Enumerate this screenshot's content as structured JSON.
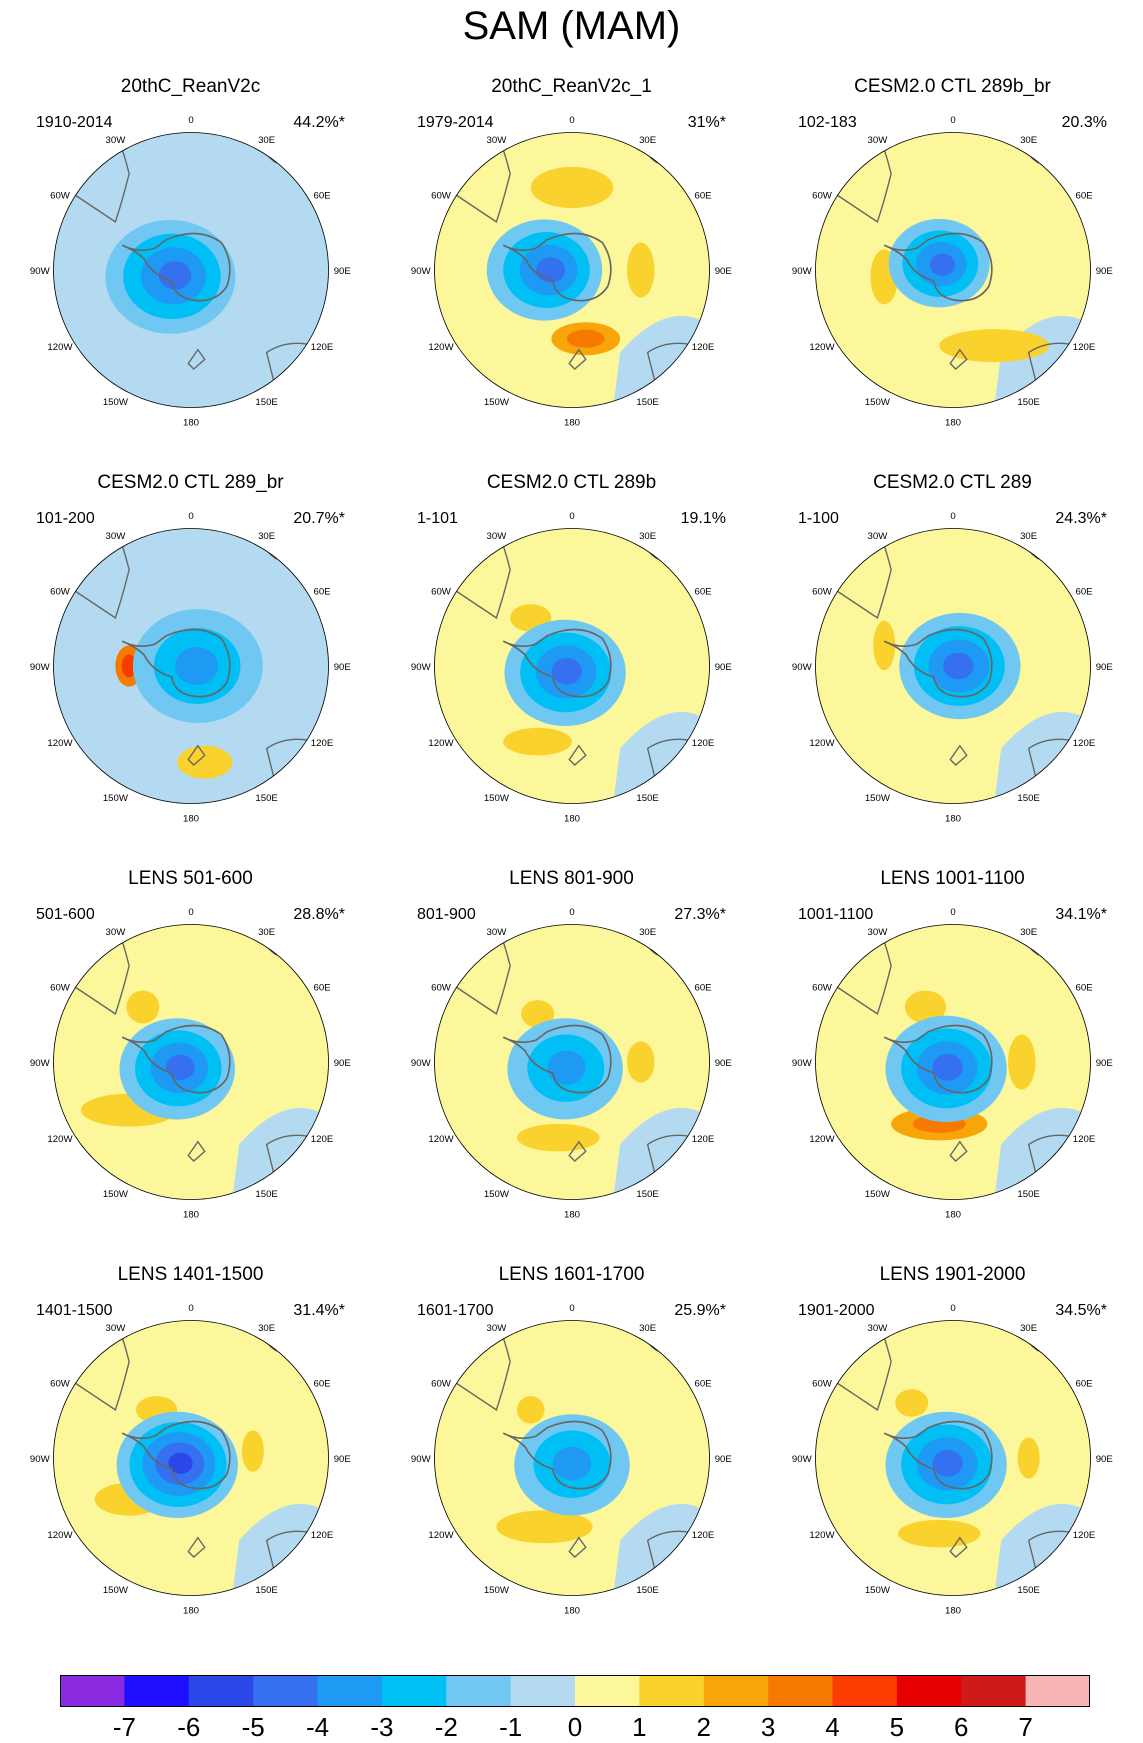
{
  "figure": {
    "title": "SAM (MAM)",
    "projection": "south-polar-stereographic",
    "lon_labels": [
      "0",
      "30E",
      "60E",
      "90E",
      "120E",
      "150E",
      "180",
      "150W",
      "120W",
      "90W",
      "60W",
      "30W"
    ]
  },
  "panels": [
    {
      "title": "20thC_ReanV2c",
      "period": "1910-2014",
      "pct": "44.2%*",
      "pattern": {
        "core": -4,
        "core_offset": [
          -0.15,
          0.05
        ],
        "core_r": 0.45,
        "ring": "neg",
        "extra": []
      }
    },
    {
      "title": "20thC_ReanV2c_1",
      "period": "1979-2014",
      "pct": "31%*",
      "pattern": {
        "core": -4,
        "core_offset": [
          -0.2,
          0.0
        ],
        "core_r": 0.4,
        "ring": "pos",
        "extra": [
          [
            "pos2",
            0.1,
            0.5,
            0.25,
            0.12
          ],
          [
            "pos1",
            0.5,
            0.0,
            0.1,
            0.2
          ],
          [
            "pos1",
            0.0,
            -0.6,
            0.3,
            0.15
          ]
        ]
      }
    },
    {
      "title": "CESM2.0 CTL 289b_br",
      "period": "102-183",
      "pct": "20.3%",
      "pattern": {
        "core": -4,
        "core_offset": [
          -0.1,
          -0.05
        ],
        "core_r": 0.35,
        "ring": "pos",
        "extra": [
          [
            "pos1",
            -0.5,
            0.05,
            0.1,
            0.2
          ],
          [
            "pos1",
            0.3,
            0.55,
            0.4,
            0.12
          ]
        ]
      }
    },
    {
      "title": "CESM2.0 CTL 289_br",
      "period": "101-200",
      "pct": "20.7%*",
      "pattern": {
        "core": -3,
        "core_offset": [
          0.05,
          0.0
        ],
        "core_r": 0.45,
        "ring": "neg",
        "extra": [
          [
            "pos3",
            -0.45,
            0.0,
            0.1,
            0.15
          ],
          [
            "pos1",
            0.1,
            0.7,
            0.2,
            0.12
          ]
        ]
      }
    },
    {
      "title": "CESM2.0 CTL 289b",
      "period": "1-101",
      "pct": "19.1%",
      "pattern": {
        "core": -4,
        "core_offset": [
          -0.05,
          0.05
        ],
        "core_r": 0.42,
        "ring": "pos",
        "extra": [
          [
            "pos1",
            -0.3,
            -0.35,
            0.15,
            0.1
          ],
          [
            "pos1",
            -0.25,
            0.55,
            0.25,
            0.1
          ]
        ]
      }
    },
    {
      "title": "CESM2.0 CTL 289",
      "period": "1-100",
      "pct": "24.3%*",
      "pattern": {
        "core": -4,
        "core_offset": [
          0.05,
          0.0
        ],
        "core_r": 0.42,
        "ring": "pos",
        "extra": [
          [
            "pos1",
            -0.5,
            -0.15,
            0.08,
            0.18
          ]
        ]
      }
    },
    {
      "title": "LENS 501-600",
      "period": "501-600",
      "pct": "28.8%*",
      "pattern": {
        "core": -4,
        "core_offset": [
          -0.1,
          0.05
        ],
        "core_r": 0.4,
        "ring": "pos",
        "extra": [
          [
            "pos1",
            -0.35,
            -0.4,
            0.12,
            0.12
          ],
          [
            "pos1",
            -0.45,
            0.35,
            0.35,
            0.12
          ]
        ]
      }
    },
    {
      "title": "LENS 801-900",
      "period": "801-900",
      "pct": "27.3%*",
      "pattern": {
        "core": -3,
        "core_offset": [
          -0.05,
          0.05
        ],
        "core_r": 0.4,
        "ring": "pos",
        "extra": [
          [
            "pos1",
            -0.25,
            -0.35,
            0.12,
            0.1
          ],
          [
            "pos1",
            0.5,
            0.0,
            0.1,
            0.15
          ],
          [
            "pos1",
            -0.1,
            0.55,
            0.3,
            0.1
          ]
        ]
      }
    },
    {
      "title": "LENS 1001-1100",
      "period": "1001-1100",
      "pct": "34.1%*",
      "pattern": {
        "core": -4,
        "core_offset": [
          -0.05,
          0.05
        ],
        "core_r": 0.42,
        "ring": "pos",
        "extra": [
          [
            "pos1",
            -0.2,
            -0.4,
            0.15,
            0.12
          ],
          [
            "pos1",
            0.5,
            0.0,
            0.1,
            0.2
          ],
          [
            "pos2",
            -0.1,
            0.45,
            0.35,
            0.12
          ]
        ]
      }
    },
    {
      "title": "LENS 1401-1500",
      "period": "1401-1500",
      "pct": "31.4%*",
      "pattern": {
        "core": -5,
        "core_offset": [
          -0.1,
          0.05
        ],
        "core_r": 0.42,
        "ring": "pos",
        "extra": [
          [
            "pos1",
            -0.25,
            -0.35,
            0.15,
            0.1
          ],
          [
            "pos1",
            0.45,
            -0.05,
            0.08,
            0.15
          ],
          [
            "pos1",
            -0.45,
            0.3,
            0.25,
            0.12
          ]
        ]
      }
    },
    {
      "title": "LENS 1601-1700",
      "period": "1601-1700",
      "pct": "25.9%*",
      "pattern": {
        "core": -3,
        "core_offset": [
          0.0,
          0.05
        ],
        "core_r": 0.4,
        "ring": "pos",
        "extra": [
          [
            "pos1",
            -0.3,
            -0.35,
            0.1,
            0.1
          ],
          [
            "pos1",
            -0.2,
            0.5,
            0.35,
            0.12
          ]
        ]
      }
    },
    {
      "title": "LENS 1901-2000",
      "period": "1901-2000",
      "pct": "34.5%*",
      "pattern": {
        "core": -4,
        "core_offset": [
          -0.05,
          0.05
        ],
        "core_r": 0.42,
        "ring": "pos",
        "extra": [
          [
            "pos1",
            -0.3,
            -0.4,
            0.12,
            0.1
          ],
          [
            "pos1",
            0.55,
            0.0,
            0.08,
            0.15
          ],
          [
            "pos1",
            -0.1,
            0.55,
            0.3,
            0.1
          ]
        ]
      }
    }
  ],
  "colorbar": {
    "labels": [
      "-7",
      "-6",
      "-5",
      "-4",
      "-3",
      "-2",
      "-1",
      "0",
      "1",
      "2",
      "3",
      "4",
      "5",
      "6",
      "7"
    ],
    "colors": [
      "#8a2be2",
      "#1e10ff",
      "#2b47e8",
      "#3570f0",
      "#1e9af5",
      "#00bff5",
      "#70c8f2",
      "#b3daf0",
      "#fcf79a",
      "#fad22e",
      "#f8a50a",
      "#f77a00",
      "#fa3c00",
      "#e60000",
      "#cf1a1a",
      "#f8b5b5"
    ]
  },
  "chart_data": {
    "type": "heatmap",
    "title": "SAM (MAM)",
    "xlabel": "",
    "ylabel": "",
    "value_range": [
      -7,
      7
    ],
    "contour_levels": [
      -7,
      -6,
      -5,
      -4,
      -3,
      -2,
      -1,
      0,
      1,
      2,
      3,
      4,
      5,
      6,
      7
    ],
    "panels": [
      {
        "name": "20thC_ReanV2c",
        "period": "1910-2014",
        "variance_explained": "44.2%*"
      },
      {
        "name": "20thC_ReanV2c_1",
        "period": "1979-2014",
        "variance_explained": "31%*"
      },
      {
        "name": "CESM2.0 CTL 289b_br",
        "period": "102-183",
        "variance_explained": "20.3%"
      },
      {
        "name": "CESM2.0 CTL 289_br",
        "period": "101-200",
        "variance_explained": "20.7%*"
      },
      {
        "name": "CESM2.0 CTL 289b",
        "period": "1-101",
        "variance_explained": "19.1%"
      },
      {
        "name": "CESM2.0 CTL 289",
        "period": "1-100",
        "variance_explained": "24.3%*"
      },
      {
        "name": "LENS 501-600",
        "period": "501-600",
        "variance_explained": "28.8%*"
      },
      {
        "name": "LENS 801-900",
        "period": "801-900",
        "variance_explained": "27.3%*"
      },
      {
        "name": "LENS 1001-1100",
        "period": "1001-1100",
        "variance_explained": "34.1%*"
      },
      {
        "name": "LENS 1401-1500",
        "period": "1401-1500",
        "variance_explained": "31.4%*"
      },
      {
        "name": "LENS 1601-1700",
        "period": "1601-1700",
        "variance_explained": "25.9%*"
      },
      {
        "name": "LENS 1901-2000",
        "period": "1901-2000",
        "variance_explained": "34.5%*"
      }
    ]
  }
}
